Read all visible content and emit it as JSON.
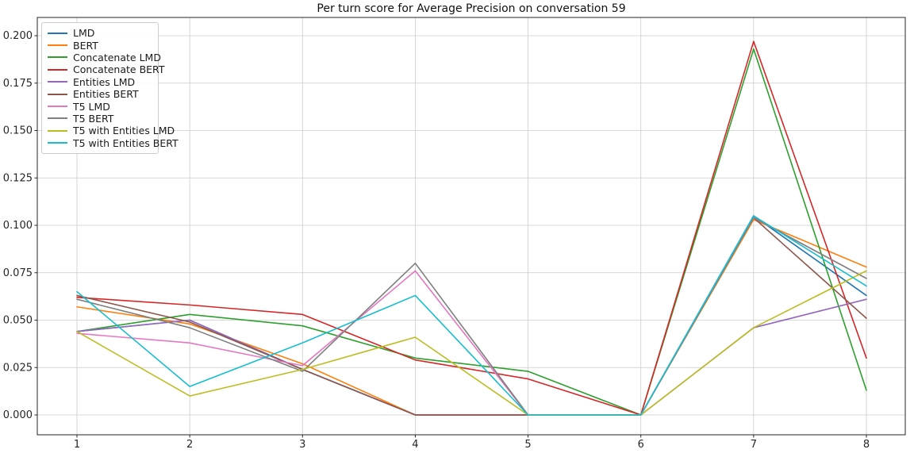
{
  "chart_data": {
    "type": "line",
    "title": "Per turn score for Average Precision on conversation 59",
    "xlabel": "",
    "ylabel": "",
    "x": [
      1,
      2,
      3,
      4,
      5,
      6,
      7,
      8
    ],
    "xticks": [
      "1",
      "2",
      "3",
      "4",
      "5",
      "6",
      "7",
      "8"
    ],
    "yticks": [
      0.0,
      0.025,
      0.05,
      0.075,
      0.1,
      0.125,
      0.15,
      0.175,
      0.2
    ],
    "ylim": [
      -0.0105,
      0.2095
    ],
    "xlim": [
      0.65,
      8.35
    ],
    "grid": true,
    "legend_position": "upper left",
    "series": [
      {
        "name": "LMD",
        "color": "#1f77b4",
        "values": [
          0.044,
          0.05,
          0.024,
          0.0,
          0.0,
          0.0,
          0.105,
          0.063
        ]
      },
      {
        "name": "BERT",
        "color": "#ff7f0e",
        "values": [
          0.057,
          0.048,
          0.027,
          0.0,
          0.0,
          0.0,
          0.103,
          0.078
        ]
      },
      {
        "name": "Concatenate LMD",
        "color": "#2ca02c",
        "values": [
          0.044,
          0.053,
          0.047,
          0.03,
          0.023,
          0.0,
          0.193,
          0.013
        ]
      },
      {
        "name": "Concatenate BERT",
        "color": "#d62728",
        "values": [
          0.062,
          0.058,
          0.053,
          0.029,
          0.019,
          0.0,
          0.197,
          0.03
        ]
      },
      {
        "name": "Entities LMD",
        "color": "#9467bd",
        "values": [
          0.044,
          0.05,
          0.024,
          0.0,
          0.0,
          0.0,
          0.046,
          0.061
        ]
      },
      {
        "name": "Entities BERT",
        "color": "#8c564b",
        "values": [
          0.063,
          0.049,
          0.024,
          0.0,
          0.0,
          0.0,
          0.104,
          0.051
        ]
      },
      {
        "name": "T5 LMD",
        "color": "#e377c2",
        "values": [
          0.043,
          0.038,
          0.026,
          0.076,
          0.0,
          0.0,
          0.104,
          0.072
        ]
      },
      {
        "name": "T5 BERT",
        "color": "#7f7f7f",
        "values": [
          0.061,
          0.046,
          0.023,
          0.08,
          0.0,
          0.0,
          0.104,
          0.072
        ]
      },
      {
        "name": "T5 with Entities LMD",
        "color": "#bcbd22",
        "values": [
          0.044,
          0.01,
          0.024,
          0.041,
          0.0,
          0.0,
          0.046,
          0.076
        ]
      },
      {
        "name": "T5 with Entities BERT",
        "color": "#17becf",
        "values": [
          0.065,
          0.015,
          0.038,
          0.063,
          0.0,
          0.0,
          0.105,
          0.068
        ]
      }
    ]
  }
}
